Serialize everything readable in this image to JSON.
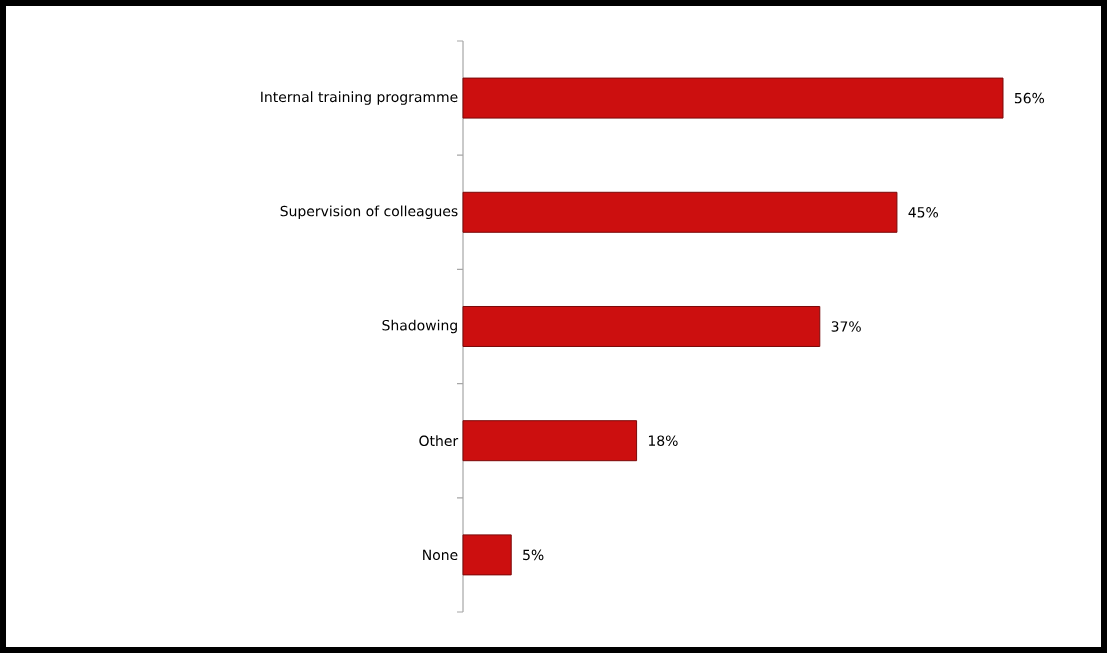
{
  "chart_data": {
    "type": "bar",
    "orientation": "horizontal",
    "categories": [
      "Internal training programme",
      "Supervision of colleagues",
      "Shadowing",
      "Other",
      "None"
    ],
    "values": [
      56,
      45,
      37,
      18,
      5
    ],
    "value_labels": [
      "56%",
      "45%",
      "37%",
      "18%",
      "5%"
    ],
    "color": "#cc0f0f"
  }
}
